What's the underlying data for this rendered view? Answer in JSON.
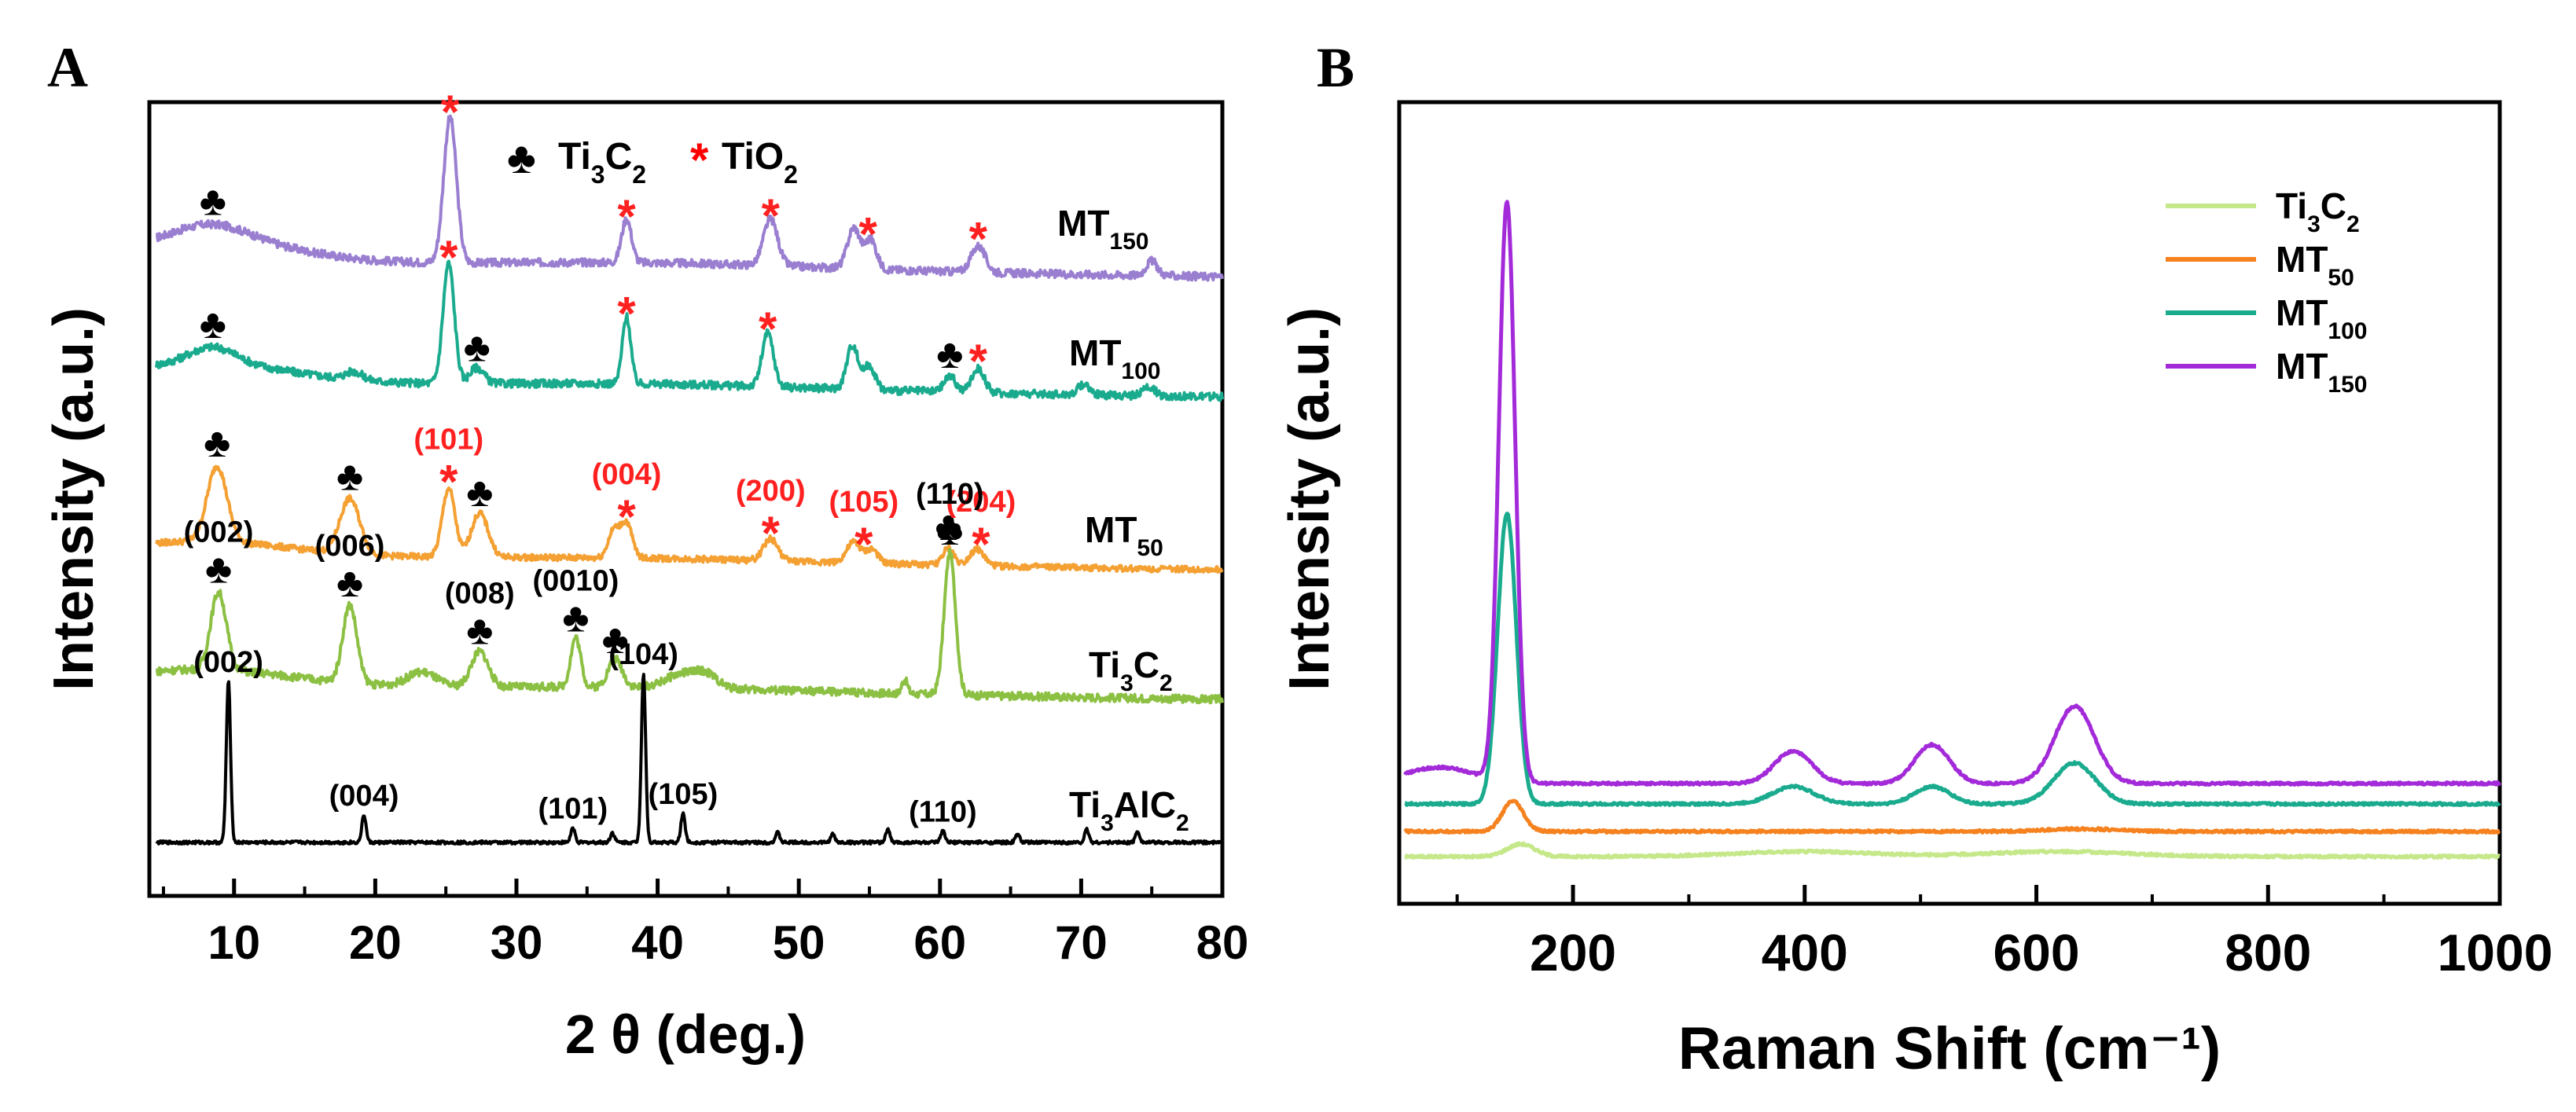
{
  "chart_data": [
    {
      "panel": "A",
      "type": "line",
      "xlabel": "2 θ (deg.)",
      "ylabel": "Intensity (a.u.)",
      "xlim": [
        4,
        80
      ],
      "xticks": [
        "10",
        "20",
        "30",
        "40",
        "50",
        "60",
        "70",
        "80"
      ],
      "legend": {
        "position": "top-center",
        "items": [
          {
            "symbol": "♣",
            "label": "Ti3C2",
            "color": "#000000"
          },
          {
            "symbol": "*",
            "label": "TiO2",
            "color": "#ff0000"
          }
        ]
      },
      "series": [
        {
          "name": "MT150",
          "color": "#9a7fd1",
          "baseline": 0.0,
          "peaks": [
            [
              8.5,
              0.1,
              2.5
            ],
            [
              25.3,
              1.0,
              0.45
            ],
            [
              37.8,
              0.3,
              0.35
            ],
            [
              48.0,
              0.32,
              0.5
            ],
            [
              53.9,
              0.28,
              0.45
            ],
            [
              55.1,
              0.2,
              0.4
            ],
            [
              62.7,
              0.18,
              0.5
            ],
            [
              75.0,
              0.1,
              0.4
            ]
          ],
          "annotations": [
            {
              "x": 8.5,
              "symbol": "♣"
            },
            {
              "x": 25.3,
              "symbol": "*"
            },
            {
              "x": 37.8,
              "symbol": "*"
            },
            {
              "x": 48.0,
              "symbol": "*"
            },
            {
              "x": 54.9,
              "symbol": "*"
            },
            {
              "x": 62.7,
              "symbol": "*"
            }
          ]
        },
        {
          "name": "MT100",
          "color": "#1aab8e",
          "baseline": 0.0,
          "peaks": [
            [
              8.5,
              0.12,
              1.6
            ],
            [
              18.5,
              0.06,
              0.6
            ],
            [
              25.2,
              0.9,
              0.4
            ],
            [
              27.2,
              0.12,
              0.5
            ],
            [
              37.8,
              0.5,
              0.3
            ],
            [
              47.8,
              0.4,
              0.4
            ],
            [
              53.8,
              0.33,
              0.4
            ],
            [
              55.0,
              0.18,
              0.4
            ],
            [
              60.7,
              0.12,
              0.4
            ],
            [
              62.7,
              0.18,
              0.45
            ],
            [
              70.2,
              0.08,
              0.4
            ],
            [
              74.8,
              0.07,
              0.4
            ]
          ],
          "annotations": [
            {
              "x": 8.5,
              "symbol": "♣"
            },
            {
              "x": 25.2,
              "symbol": "*"
            },
            {
              "x": 27.2,
              "symbol": "♣"
            },
            {
              "x": 37.8,
              "symbol": "*"
            },
            {
              "x": 47.8,
              "symbol": "*"
            },
            {
              "x": 60.7,
              "symbol": "♣"
            },
            {
              "x": 62.7,
              "symbol": "*"
            }
          ]
        },
        {
          "name": "MT50",
          "color": "#f4a032",
          "baseline": 0.0,
          "peaks": [
            [
              8.8,
              0.55,
              0.7
            ],
            [
              18.2,
              0.4,
              0.7
            ],
            [
              25.2,
              0.5,
              0.45
            ],
            [
              27.4,
              0.32,
              0.6
            ],
            [
              36.9,
              0.2,
              0.4
            ],
            [
              37.8,
              0.25,
              0.4
            ],
            [
              48.0,
              0.16,
              0.5
            ],
            [
              53.9,
              0.15,
              0.5
            ],
            [
              55.2,
              0.1,
              0.4
            ],
            [
              60.6,
              0.12,
              0.4
            ],
            [
              62.6,
              0.12,
              0.5
            ]
          ],
          "annotations": [
            {
              "x": 8.8,
              "symbol": "♣"
            },
            {
              "x": 18.2,
              "symbol": "♣"
            },
            {
              "x": 25.2,
              "symbol": "*",
              "label": "(101)"
            },
            {
              "x": 27.4,
              "symbol": "♣"
            },
            {
              "x": 37.8,
              "symbol": "*",
              "label": "(004)"
            },
            {
              "x": 48.0,
              "symbol": "*",
              "label": "(200)"
            },
            {
              "x": 54.6,
              "symbol": "*",
              "label": "(105)"
            },
            {
              "x": 60.6,
              "symbol": "♣"
            },
            {
              "x": 62.9,
              "symbol": "*",
              "label": "(204)"
            }
          ]
        },
        {
          "name": "Ti3C2",
          "color": "#8cc043",
          "baseline": 0.0,
          "peaks": [
            [
              8.9,
              0.55,
              0.55
            ],
            [
              18.2,
              0.55,
              0.5
            ],
            [
              23.3,
              0.1,
              1.0
            ],
            [
              27.4,
              0.25,
              0.6
            ],
            [
              34.2,
              0.35,
              0.35
            ],
            [
              37.0,
              0.2,
              0.5
            ],
            [
              41.8,
              0.1,
              1.2
            ],
            [
              43.5,
              0.08,
              0.8
            ],
            [
              57.5,
              0.1,
              0.2
            ],
            [
              60.7,
              1.0,
              0.4
            ]
          ],
          "annotations": [
            {
              "x": 8.9,
              "symbol": "♣",
              "label": "(002)"
            },
            {
              "x": 18.2,
              "symbol": "♣",
              "label": "(006)"
            },
            {
              "x": 27.4,
              "symbol": "♣",
              "label": "(008)"
            },
            {
              "x": 34.2,
              "symbol": "♣",
              "label": "(0010)"
            },
            {
              "x": 37.0,
              "symbol": "♣"
            },
            {
              "x": 60.7,
              "symbol": "♣",
              "label": "(110)"
            }
          ]
        },
        {
          "name": "Ti3AlC2",
          "color": "#000000",
          "baseline": 0.0,
          "peaks": [
            [
              9.6,
              1.0,
              0.15
            ],
            [
              19.2,
              0.17,
              0.15
            ],
            [
              34.0,
              0.09,
              0.15
            ],
            [
              36.8,
              0.06,
              0.15
            ],
            [
              39.0,
              1.05,
              0.15
            ],
            [
              41.8,
              0.18,
              0.15
            ],
            [
              48.5,
              0.06,
              0.15
            ],
            [
              52.4,
              0.05,
              0.15
            ],
            [
              56.3,
              0.08,
              0.15
            ],
            [
              60.2,
              0.07,
              0.15
            ],
            [
              65.5,
              0.05,
              0.15
            ],
            [
              70.4,
              0.08,
              0.15
            ],
            [
              74.0,
              0.07,
              0.15
            ]
          ],
          "annotations": [
            {
              "x": 9.6,
              "label": "(002)"
            },
            {
              "x": 19.2,
              "label": "(004)"
            },
            {
              "x": 34.0,
              "label": "(101)"
            },
            {
              "x": 39.0,
              "label": "(104)"
            },
            {
              "x": 41.8,
              "label": "(105)"
            },
            {
              "x": 60.2,
              "label": "(110)"
            }
          ]
        }
      ]
    },
    {
      "panel": "B",
      "type": "line",
      "xlabel": "Raman Shift (cm⁻¹)",
      "ylabel": "Intensity (a.u.)",
      "xlim": [
        50,
        1000
      ],
      "xticks": [
        "200",
        "400",
        "600",
        "800",
        "1000"
      ],
      "legend": {
        "position": "top-right"
      },
      "series": [
        {
          "name": "Ti3C2",
          "color": "#c5e88a",
          "peaks": [
            [
              155,
              0.05,
              12
            ],
            [
              400,
              0.02,
              60
            ],
            [
              620,
              0.02,
              60
            ]
          ]
        },
        {
          "name": "MT50",
          "color": "#f5821f",
          "peaks": [
            [
              148,
              0.12,
              9
            ],
            [
              640,
              0.01,
              30
            ]
          ]
        },
        {
          "name": "MT100",
          "color": "#1aab8e",
          "peaks": [
            [
              143,
              1.0,
              8
            ],
            [
              390,
              0.06,
              18
            ],
            [
              510,
              0.06,
              15
            ],
            [
              633,
              0.14,
              18
            ]
          ]
        },
        {
          "name": "MT150",
          "color": "#a32ad9",
          "peaks": [
            [
              143,
              1.8,
              7
            ],
            [
              85,
              0.05,
              30
            ],
            [
              390,
              0.1,
              16
            ],
            [
              510,
              0.12,
              15
            ],
            [
              633,
              0.24,
              17
            ]
          ]
        }
      ]
    }
  ],
  "figure": {
    "panel_labels": [
      "A",
      "B"
    ]
  }
}
